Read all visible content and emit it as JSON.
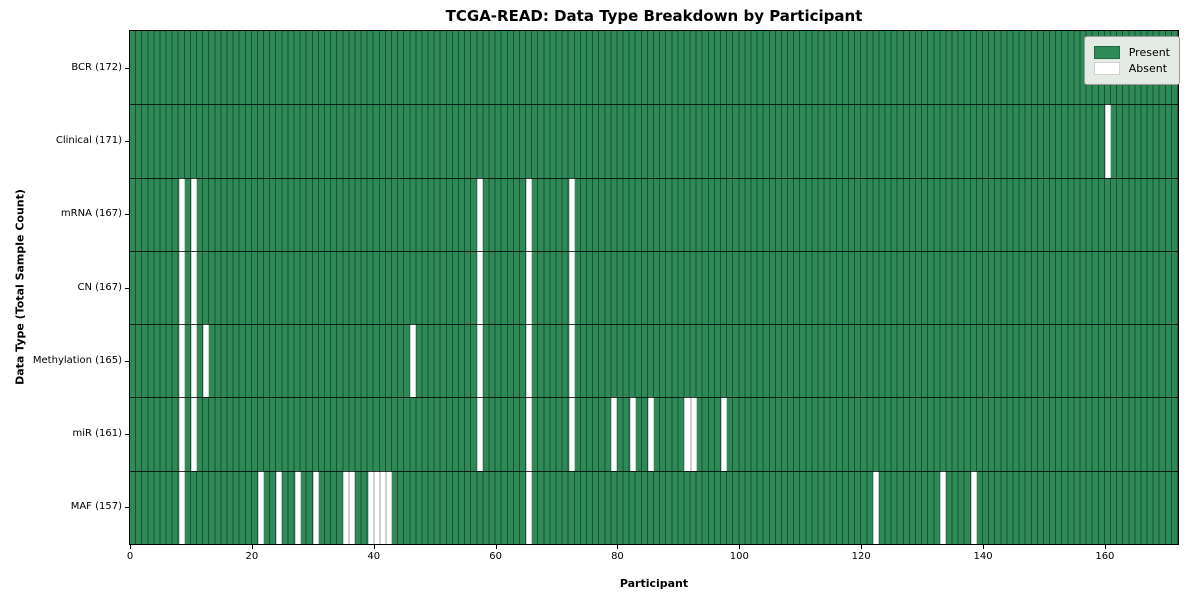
{
  "figure": {
    "title": "TCGA-READ: Data Type Breakdown by Participant",
    "xlabel": "Participant",
    "ylabel": "Data Type (Total Sample Count)"
  },
  "legend": {
    "items": [
      {
        "label": "Present",
        "color": "#2e8b57"
      },
      {
        "label": "Absent",
        "color": "#ffffff"
      }
    ]
  },
  "colors": {
    "present": "#2e8b57",
    "absent": "#ffffff",
    "grid_line": "rgba(0,0,0,0.42)",
    "row_divider": "rgba(0,0,0,0.78)",
    "plot_border": "#000000",
    "legend_background": "#e4ebe4"
  },
  "chart_data": {
    "type": "heatmap",
    "title": "TCGA-READ: Data Type Breakdown by Participant",
    "xlabel": "Participant",
    "ylabel": "Data Type (Total Sample Count)",
    "legend_position": "upper right",
    "grid": true,
    "total_participants": 172,
    "x_range": [
      0,
      172
    ],
    "x_ticks": [
      0,
      20,
      40,
      60,
      80,
      100,
      120,
      140,
      160
    ],
    "present_value_color": "#2e8b57",
    "absent_value_color": "#ffffff",
    "rows": [
      {
        "label": "BCR (172)",
        "data_type": "BCR",
        "sample_count": 172,
        "absent_participants": []
      },
      {
        "label": "Clinical (171)",
        "data_type": "Clinical",
        "sample_count": 171,
        "absent_participants": [
          160
        ]
      },
      {
        "label": "mRNA (167)",
        "data_type": "mRNA",
        "sample_count": 167,
        "absent_participants": [
          8,
          10,
          57,
          65,
          72
        ]
      },
      {
        "label": "CN (167)",
        "data_type": "CN",
        "sample_count": 167,
        "absent_participants": [
          8,
          10,
          57,
          65,
          72
        ]
      },
      {
        "label": "Methylation (165)",
        "data_type": "Methylation",
        "sample_count": 165,
        "absent_participants": [
          8,
          10,
          12,
          46,
          57,
          65,
          72
        ]
      },
      {
        "label": "miR (161)",
        "data_type": "miR",
        "sample_count": 161,
        "absent_participants": [
          8,
          10,
          57,
          65,
          72,
          79,
          82,
          85,
          91,
          92,
          97
        ]
      },
      {
        "label": "MAF (157)",
        "data_type": "MAF",
        "sample_count": 157,
        "absent_participants": [
          8,
          21,
          24,
          27,
          30,
          35,
          36,
          39,
          40,
          41,
          42,
          65,
          122,
          133,
          138
        ]
      }
    ]
  }
}
